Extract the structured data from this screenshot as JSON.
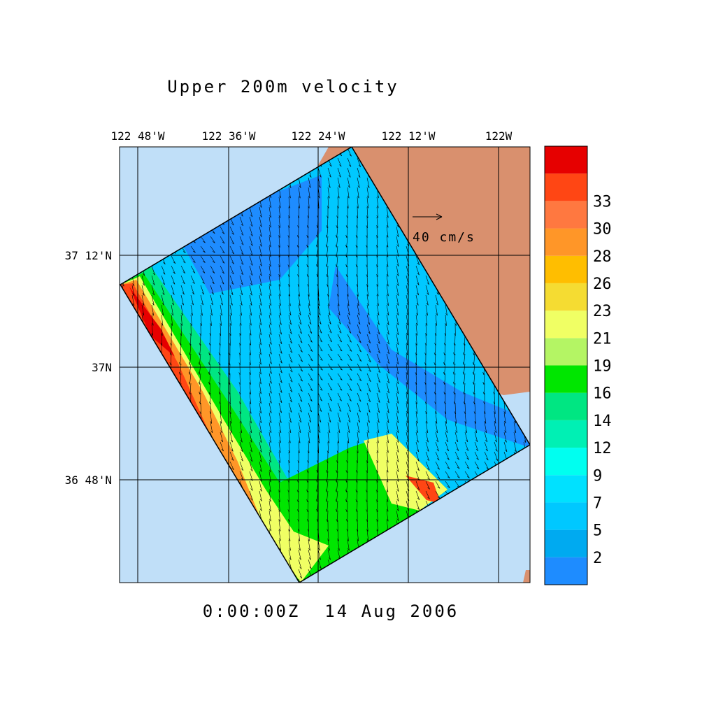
{
  "title": "Upper 200m velocity",
  "lon_labels": [
    "122 48'W",
    "122 36'W",
    "122 24'W",
    "122 12'W",
    "122W"
  ],
  "lat_labels": [
    "37 12'N",
    "37N",
    "36 48'N"
  ],
  "reference_vector": "40 cm/s",
  "timestamp": "0:00:00Z  14 Aug 2006",
  "colorbar": {
    "colors": [
      "#1e8cff",
      "#00aaf0",
      "#00c8ff",
      "#00e1ff",
      "#00fff0",
      "#00f0b4",
      "#00e682",
      "#00e600",
      "#b4f564",
      "#f0ff64",
      "#f5dc32",
      "#ffbe00",
      "#ff9628",
      "#ff7840",
      "#ff4614",
      "#e60000"
    ],
    "labels": [
      2,
      5,
      7,
      9,
      12,
      14,
      16,
      19,
      21,
      23,
      26,
      28,
      30,
      33
    ]
  }
}
